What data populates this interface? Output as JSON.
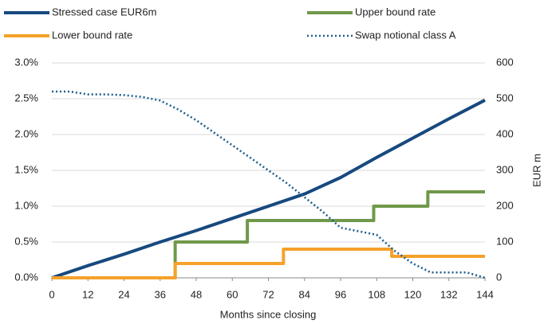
{
  "chart_data": {
    "type": "line",
    "x_label": "Months since closing",
    "y2_label": "EUR m",
    "xlim": [
      0,
      144
    ],
    "xticks": [
      0,
      12,
      24,
      36,
      48,
      60,
      72,
      84,
      96,
      108,
      120,
      132,
      144
    ],
    "ylim": [
      0,
      3
    ],
    "yticks": [
      {
        "value": 0,
        "label": "0.0%"
      },
      {
        "value": 0.5,
        "label": "0.5%"
      },
      {
        "value": 1,
        "label": "1.0%"
      },
      {
        "value": 1.5,
        "label": "1.5%"
      },
      {
        "value": 2,
        "label": "2.0%"
      },
      {
        "value": 2.5,
        "label": "2.5%"
      },
      {
        "value": 3,
        "label": "3.0%"
      }
    ],
    "y2lim": [
      0,
      600
    ],
    "y2ticks": [
      0,
      100,
      200,
      300,
      400,
      500,
      600
    ],
    "grid": true,
    "series": [
      {
        "name": "Stressed case EUR6m",
        "color": "#17497f",
        "style": "solid",
        "x": [
          0,
          12,
          24,
          36,
          48,
          60,
          72,
          84,
          96,
          108,
          120,
          132,
          144
        ],
        "values": [
          0,
          0.17,
          0.33,
          0.5,
          0.66,
          0.83,
          1.0,
          1.17,
          1.4,
          1.68,
          1.95,
          2.22,
          2.48
        ]
      },
      {
        "name": "Upper bound rate",
        "color": "#70984a",
        "style": "solid",
        "x": [
          0,
          41,
          41,
          65,
          65,
          107,
          107,
          125,
          125,
          144
        ],
        "values": [
          0,
          0,
          0.5,
          0.5,
          0.8,
          0.8,
          1.0,
          1.0,
          1.2,
          1.2
        ]
      },
      {
        "name": "Lower bound rate",
        "color": "#f5a12a",
        "style": "solid",
        "x": [
          0,
          41,
          41,
          77,
          77,
          113,
          113,
          144
        ],
        "values": [
          0,
          0,
          0.2,
          0.2,
          0.4,
          0.4,
          0.3,
          0.3
        ]
      },
      {
        "name": "Swap notional class A",
        "color": "#1f5f8f",
        "style": "dotted",
        "axis": "y2",
        "x": [
          0,
          6,
          12,
          18,
          24,
          30,
          36,
          42,
          48,
          54,
          60,
          66,
          72,
          78,
          84,
          90,
          96,
          102,
          108,
          114,
          120,
          126,
          132,
          138,
          144
        ],
        "values": [
          520,
          520,
          512,
          512,
          510,
          505,
          495,
          470,
          440,
          405,
          370,
          335,
          300,
          265,
          225,
          185,
          140,
          130,
          120,
          75,
          40,
          15,
          15,
          15,
          0
        ]
      }
    ]
  }
}
